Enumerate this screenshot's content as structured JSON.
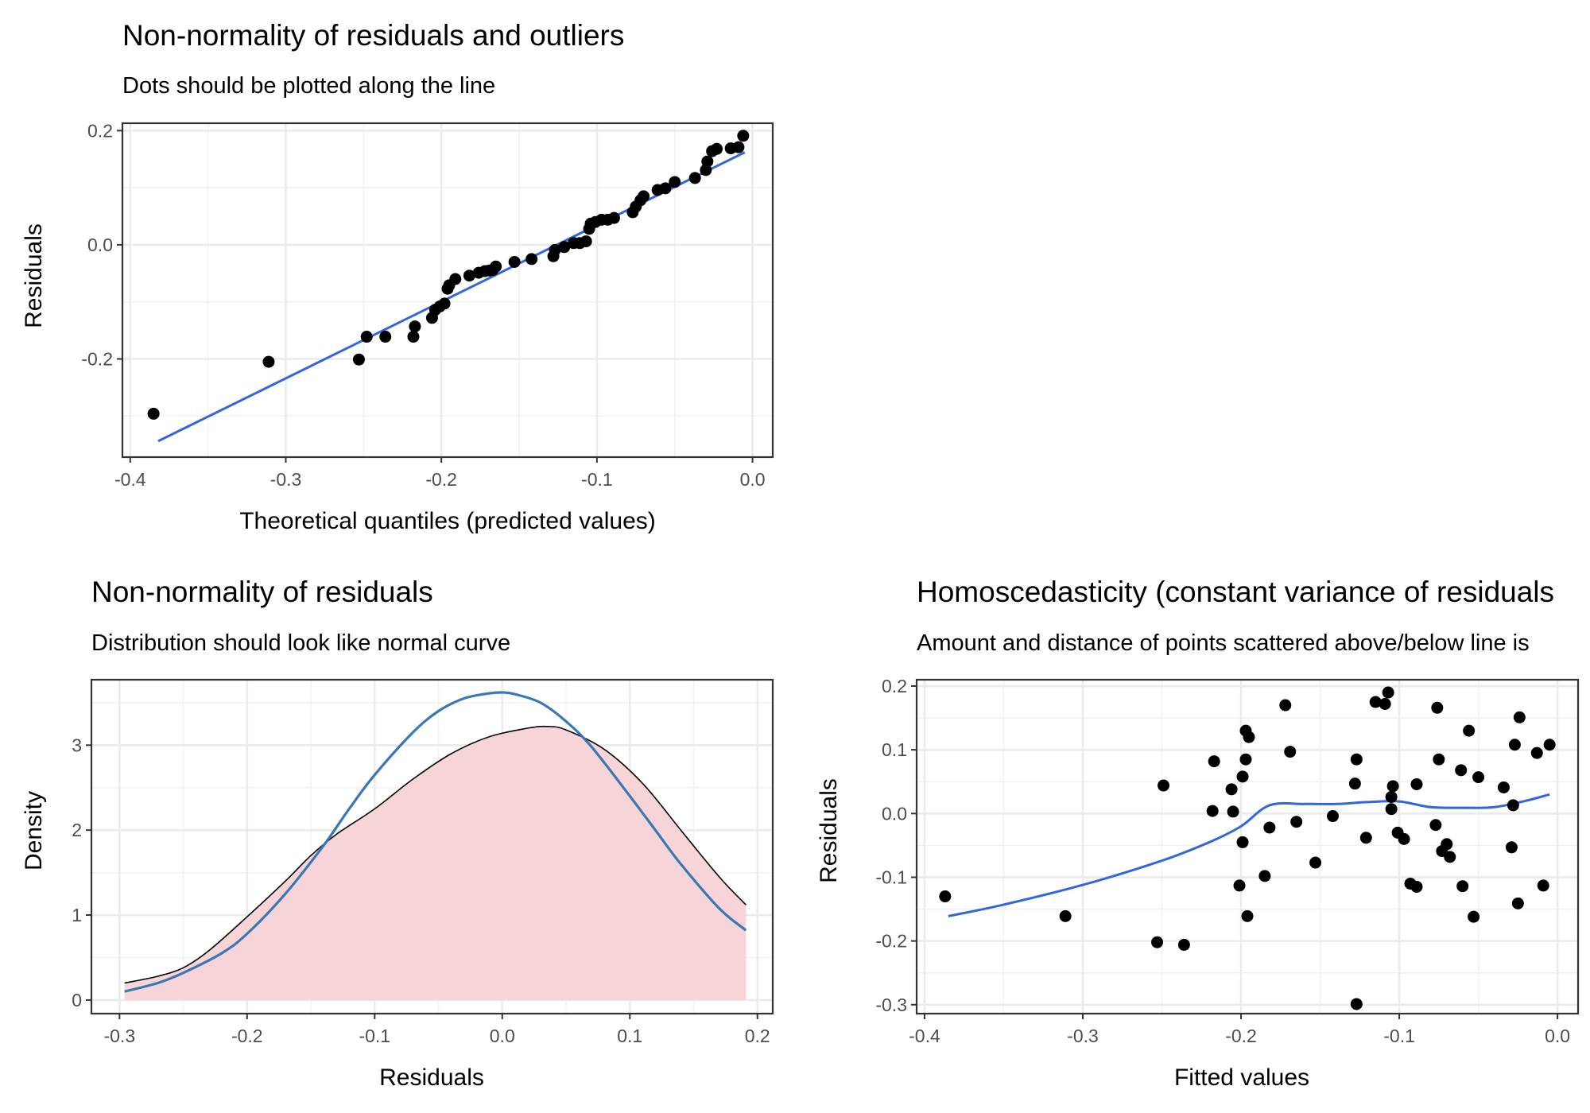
{
  "chart_data": [
    {
      "id": "qq",
      "type": "scatter",
      "title": "Non-normality of residuals and outliers",
      "subtitle": "Dots should be plotted along the line",
      "xlabel": "Theoretical quantiles (predicted values)",
      "ylabel": "Residuals",
      "xlim": [
        -0.405,
        0.013
      ],
      "ylim": [
        -0.372,
        0.213
      ],
      "xticks": [
        -0.4,
        -0.3,
        -0.2,
        -0.1,
        0.0
      ],
      "xtick_labels": [
        "-0.4",
        "-0.3",
        "-0.2",
        "-0.1",
        "0.0"
      ],
      "yticks": [
        -0.2,
        0.0,
        0.2
      ],
      "ytick_labels": [
        "-0.2",
        "0.0",
        "0.2"
      ],
      "grid": true,
      "points": {
        "x": [
          -0.385,
          -0.311,
          -0.253,
          -0.248,
          -0.236,
          -0.218,
          -0.217,
          -0.206,
          -0.204,
          -0.201,
          -0.198,
          -0.196,
          -0.195,
          -0.191,
          -0.182,
          -0.176,
          -0.172,
          -0.169,
          -0.167,
          -0.165,
          -0.153,
          -0.142,
          -0.128,
          -0.127,
          -0.121,
          -0.115,
          -0.111,
          -0.107,
          -0.105,
          -0.104,
          -0.101,
          -0.097,
          -0.093,
          -0.089,
          -0.077,
          -0.075,
          -0.072,
          -0.07,
          -0.061,
          -0.056,
          -0.05,
          -0.037,
          -0.03,
          -0.029,
          -0.026,
          -0.023,
          -0.014,
          -0.009,
          -0.006
        ],
        "y": [
          -0.296,
          -0.205,
          -0.201,
          -0.161,
          -0.161,
          -0.161,
          -0.143,
          -0.128,
          -0.114,
          -0.108,
          -0.103,
          -0.077,
          -0.071,
          -0.06,
          -0.054,
          -0.049,
          -0.046,
          -0.045,
          -0.044,
          -0.038,
          -0.03,
          -0.025,
          -0.02,
          -0.009,
          -0.004,
          0.003,
          0.003,
          0.006,
          0.028,
          0.037,
          0.04,
          0.044,
          0.044,
          0.047,
          0.057,
          0.067,
          0.078,
          0.085,
          0.096,
          0.099,
          0.11,
          0.117,
          0.131,
          0.146,
          0.164,
          0.168,
          0.169,
          0.171,
          0.191
        ]
      },
      "line": {
        "x": [
          -0.382,
          -0.005
        ],
        "y": [
          -0.344,
          0.162
        ],
        "color": "#3366dd"
      }
    },
    {
      "id": "density",
      "type": "area",
      "title": "Non-normality of residuals",
      "subtitle": "Distribution should look like normal curve",
      "xlabel": "Residuals",
      "ylabel": "Density",
      "xlim": [
        -0.322,
        0.212
      ],
      "ylim": [
        -0.16,
        3.77
      ],
      "xticks": [
        -0.3,
        -0.2,
        -0.1,
        0.0,
        0.1,
        0.2
      ],
      "xtick_labels": [
        "-0.3",
        "-0.2",
        "-0.1",
        "0.0",
        "0.1",
        "0.2"
      ],
      "yticks": [
        0,
        1,
        2,
        3
      ],
      "ytick_labels": [
        "0",
        "1",
        "2",
        "3"
      ],
      "grid": true,
      "empirical_density": {
        "x": [
          -0.296,
          -0.27,
          -0.25,
          -0.23,
          -0.2,
          -0.17,
          -0.15,
          -0.13,
          -0.1,
          -0.07,
          -0.04,
          -0.01,
          0.02,
          0.035,
          0.05,
          0.08,
          0.11,
          0.14,
          0.17,
          0.191
        ],
        "y": [
          0.2,
          0.28,
          0.38,
          0.58,
          0.98,
          1.4,
          1.7,
          1.95,
          2.25,
          2.6,
          2.9,
          3.1,
          3.2,
          3.22,
          3.18,
          2.95,
          2.55,
          2.0,
          1.45,
          1.12
        ],
        "fill": "#f7d2d5",
        "stroke": "#000000"
      },
      "normal_curve": {
        "x": [
          -0.296,
          -0.27,
          -0.25,
          -0.22,
          -0.2,
          -0.17,
          -0.14,
          -0.12,
          -0.1,
          -0.07,
          -0.05,
          -0.03,
          -0.01,
          0.0,
          0.01,
          0.03,
          0.05,
          0.07,
          0.1,
          0.12,
          0.14,
          0.17,
          0.191
        ],
        "y": [
          0.1,
          0.2,
          0.32,
          0.55,
          0.78,
          1.25,
          1.82,
          2.25,
          2.65,
          3.15,
          3.4,
          3.55,
          3.61,
          3.62,
          3.6,
          3.5,
          3.28,
          2.98,
          2.4,
          2.0,
          1.6,
          1.08,
          0.82
        ],
        "color": "#3a78b5"
      }
    },
    {
      "id": "homoscedasticity",
      "type": "scatter",
      "title": "Homoscedasticity (constant variance of residuals",
      "subtitle": "Amount and distance of points scattered above/below line is",
      "xlabel": "Fitted values",
      "ylabel": "Residuals",
      "xlim": [
        -0.405,
        0.013
      ],
      "ylim": [
        -0.314,
        0.21
      ],
      "xticks": [
        -0.4,
        -0.3,
        -0.2,
        -0.1,
        0.0
      ],
      "xtick_labels": [
        "-0.4",
        "-0.3",
        "-0.2",
        "-0.1",
        "0.0"
      ],
      "yticks": [
        -0.3,
        -0.2,
        -0.1,
        0.0,
        0.1,
        0.2
      ],
      "ytick_labels": [
        "-0.3",
        "-0.2",
        "-0.1",
        "0.0",
        "0.1",
        "0.2"
      ],
      "grid": true,
      "points": {
        "x": [
          -0.387,
          -0.311,
          -0.253,
          -0.249,
          -0.236,
          -0.218,
          -0.217,
          -0.206,
          -0.205,
          -0.201,
          -0.199,
          -0.199,
          -0.197,
          -0.197,
          -0.196,
          -0.195,
          -0.185,
          -0.182,
          -0.172,
          -0.169,
          -0.165,
          -0.153,
          -0.142,
          -0.128,
          -0.127,
          -0.127,
          -0.121,
          -0.115,
          -0.109,
          -0.107,
          -0.105,
          -0.105,
          -0.104,
          -0.101,
          -0.097,
          -0.093,
          -0.089,
          -0.089,
          -0.077,
          -0.076,
          -0.075,
          -0.073,
          -0.07,
          -0.068,
          -0.061,
          -0.06,
          -0.056,
          -0.053,
          -0.05,
          -0.034,
          -0.029,
          -0.028,
          -0.027,
          -0.025,
          -0.024,
          -0.013,
          -0.009,
          -0.005
        ],
        "y": [
          -0.13,
          -0.161,
          -0.202,
          0.044,
          -0.206,
          0.004,
          0.082,
          0.038,
          0.003,
          -0.113,
          0.058,
          -0.045,
          0.13,
          0.085,
          -0.161,
          0.12,
          -0.098,
          -0.022,
          0.17,
          0.097,
          -0.013,
          -0.077,
          -0.004,
          0.047,
          0.085,
          -0.299,
          -0.038,
          0.175,
          0.172,
          0.19,
          0.026,
          0.007,
          0.043,
          -0.03,
          -0.04,
          -0.11,
          0.046,
          -0.115,
          -0.018,
          0.166,
          0.085,
          -0.059,
          -0.048,
          -0.068,
          0.068,
          -0.114,
          0.13,
          -0.162,
          0.057,
          0.041,
          -0.053,
          0.013,
          0.108,
          -0.141,
          0.151,
          0.095,
          -0.113,
          0.108
        ],
        "note_hidden": ""
      },
      "smooth": {
        "x": [
          -0.385,
          -0.35,
          -0.3,
          -0.25,
          -0.22,
          -0.2,
          -0.182,
          -0.16,
          -0.14,
          -0.12,
          -0.1,
          -0.08,
          -0.06,
          -0.04,
          -0.02,
          -0.005
        ],
        "y": [
          -0.161,
          -0.143,
          -0.112,
          -0.074,
          -0.045,
          -0.02,
          0.013,
          0.015,
          0.015,
          0.018,
          0.019,
          0.01,
          0.009,
          0.01,
          0.02,
          0.03
        ],
        "color": "#3366dd"
      }
    }
  ]
}
